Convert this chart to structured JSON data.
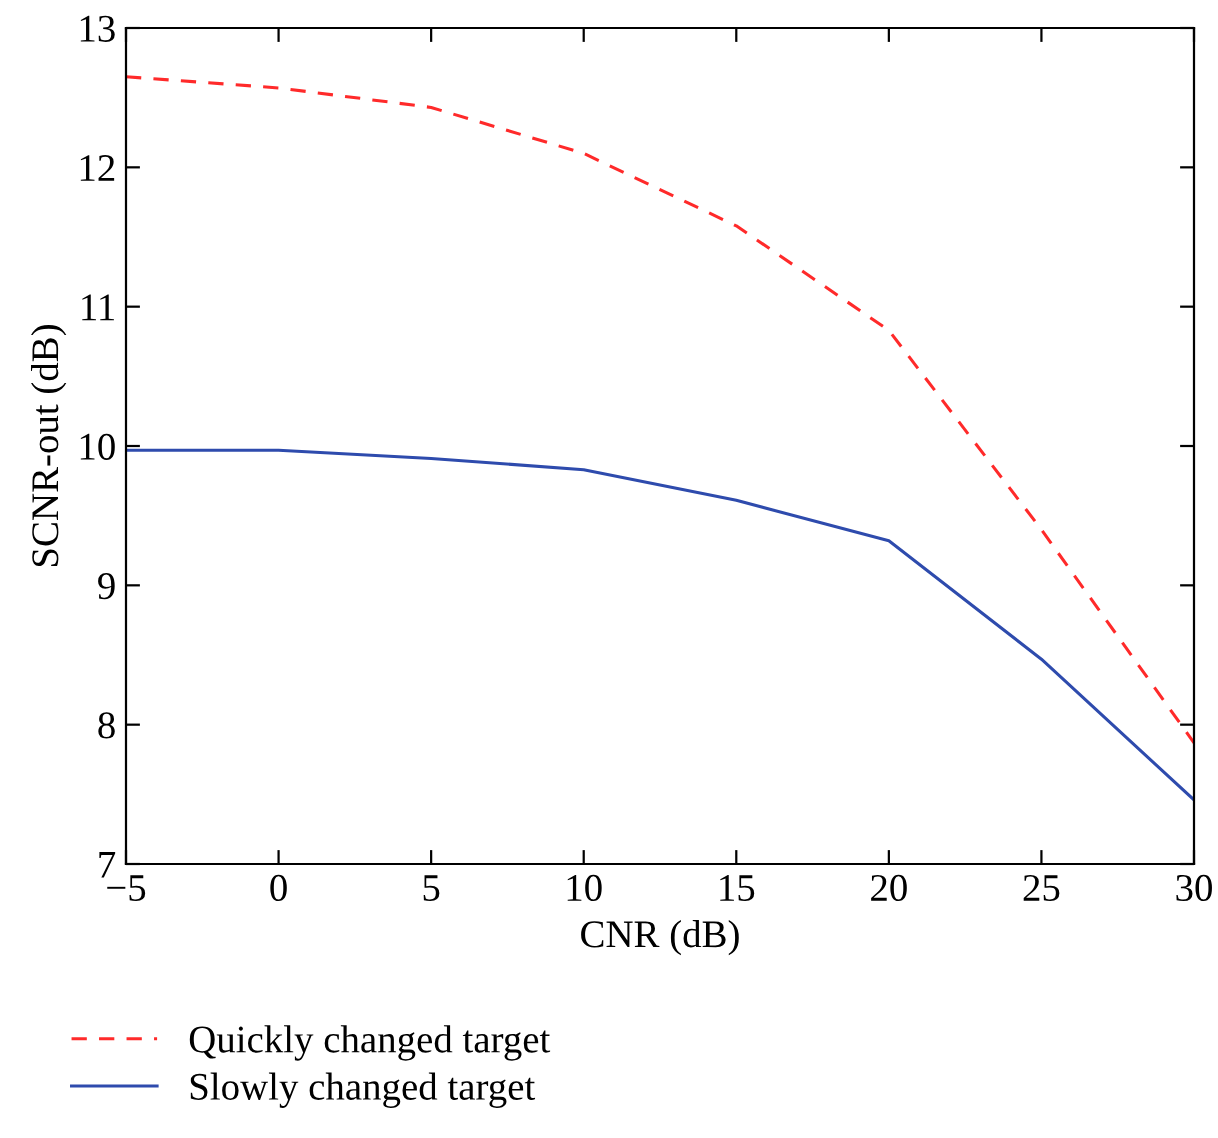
{
  "chart_data": {
    "type": "line",
    "xlabel": "CNR (dB)",
    "ylabel": "SCNR-out (dB)",
    "x": [
      -5,
      0,
      5,
      10,
      15,
      20,
      25,
      30
    ],
    "series": [
      {
        "name": "Quickly changed target",
        "color": "#ff2a2a",
        "line_style": "dashed",
        "values": [
          12.65,
          12.57,
          12.43,
          12.1,
          11.58,
          10.83,
          9.4,
          7.87
        ]
      },
      {
        "name": "Slowly changed target",
        "color": "#2e4bad",
        "line_style": "solid",
        "values": [
          9.97,
          9.97,
          9.91,
          9.83,
          9.61,
          9.32,
          8.47,
          7.46
        ]
      }
    ],
    "xlim": [
      -5,
      30
    ],
    "xticks": [
      {
        "value": -5,
        "label": "−5"
      },
      0,
      5,
      10,
      15,
      20,
      25,
      30
    ],
    "ylim": [
      7,
      13
    ],
    "yticks": [
      7,
      8,
      9,
      10,
      11,
      12,
      13
    ],
    "grid": false,
    "legend": "bottom",
    "marker": "none"
  }
}
